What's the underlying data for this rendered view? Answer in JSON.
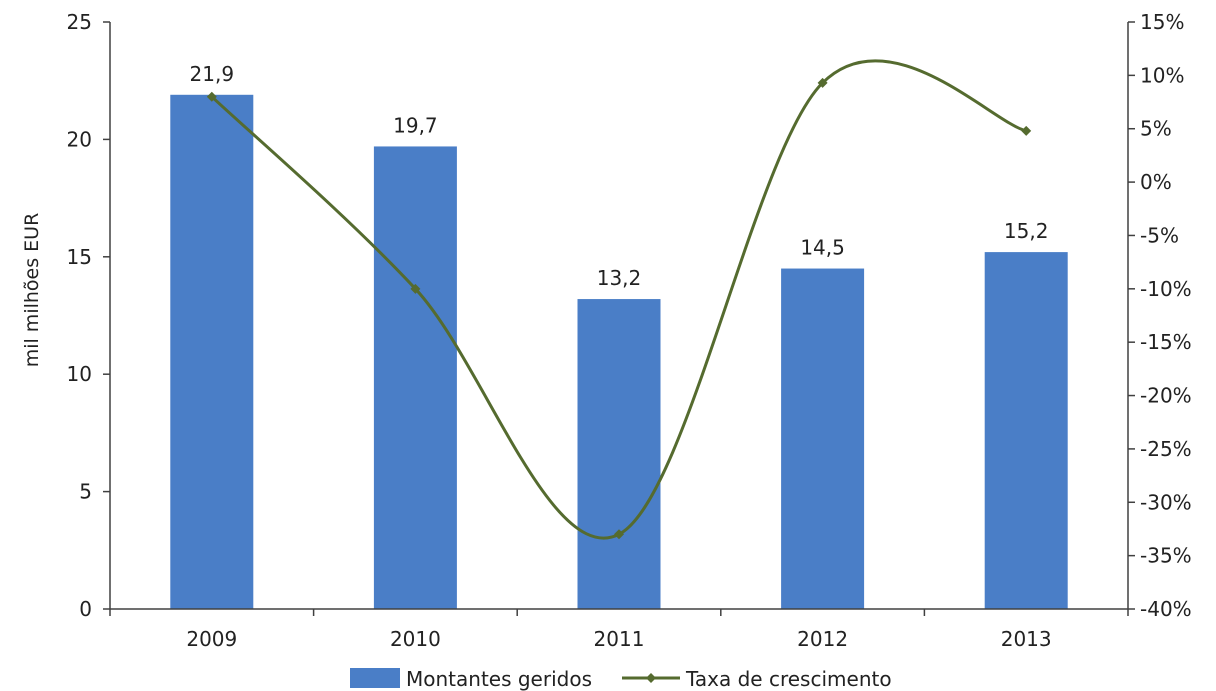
{
  "chart_data": {
    "type": "bar",
    "categories": [
      "2009",
      "2010",
      "2011",
      "2012",
      "2013"
    ],
    "series": [
      {
        "name": "Montantes geridos",
        "type": "bar",
        "axis": "left",
        "values": [
          21.9,
          19.7,
          13.2,
          14.5,
          15.2
        ],
        "data_labels": [
          "21,9",
          "19,7",
          "13,2",
          "14,5",
          "15,2"
        ],
        "color": "#4a7ec7"
      },
      {
        "name": "Taxa de crescimento",
        "type": "line",
        "axis": "right",
        "smooth": true,
        "marker": "diamond",
        "values": [
          8.0,
          -10.0,
          -33.0,
          9.3,
          4.8
        ],
        "color": "#556b2f"
      }
    ],
    "title": "",
    "xlabel": "",
    "ylabel": "mil milhões  EUR",
    "ylim": [
      0,
      25
    ],
    "yticks": [
      0,
      5,
      10,
      15,
      20,
      25
    ],
    "ytick_labels": [
      "0",
      "5",
      "10",
      "15",
      "20",
      "25"
    ],
    "y2lim": [
      -40,
      15
    ],
    "y2ticks": [
      15,
      10,
      5,
      0,
      -5,
      -10,
      -15,
      -20,
      -25,
      -30,
      -35,
      -40
    ],
    "y2tick_labels": [
      "15%",
      "10%",
      "5%",
      "0%",
      "-5%",
      "-10%",
      "-15%",
      "-20%",
      "-25%",
      "-30%",
      "-35%",
      "-40%"
    ],
    "grid": false,
    "legend_position": "bottom"
  }
}
